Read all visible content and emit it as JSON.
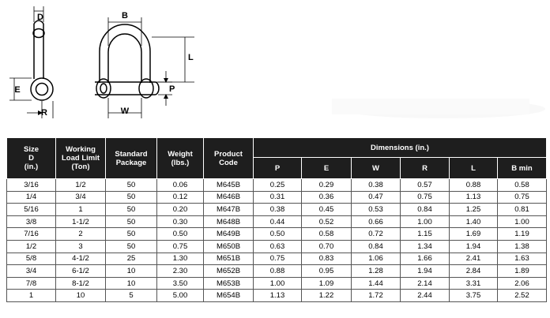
{
  "diagram": {
    "labels": {
      "d": "D",
      "e": "E",
      "r": "R",
      "b": "B",
      "l": "L",
      "p": "P",
      "w": "W"
    }
  },
  "table": {
    "headers": {
      "size": [
        "Size",
        "D",
        "(in.)"
      ],
      "wll": [
        "Working",
        "Load Limit",
        "(Ton)"
      ],
      "package": [
        "Standard",
        "Package"
      ],
      "weight": [
        "Weight",
        "(lbs.)"
      ],
      "code": [
        "Product",
        "Code"
      ],
      "dimensions": "Dimensions (in.)",
      "dim_columns": [
        "P",
        "E",
        "W",
        "R",
        "L",
        "B min"
      ]
    },
    "rows": [
      [
        "3/16",
        "1/2",
        "50",
        "0.06",
        "M645B",
        "0.25",
        "0.29",
        "0.38",
        "0.57",
        "0.88",
        "0.58"
      ],
      [
        "1/4",
        "3/4",
        "50",
        "0.12",
        "M646B",
        "0.31",
        "0.36",
        "0.47",
        "0.75",
        "1.13",
        "0.75"
      ],
      [
        "5/16",
        "1",
        "50",
        "0.20",
        "M647B",
        "0.38",
        "0.45",
        "0.53",
        "0.84",
        "1.25",
        "0.81"
      ],
      [
        "3/8",
        "1-1/2",
        "50",
        "0.30",
        "M648B",
        "0.44",
        "0.52",
        "0.66",
        "1.00",
        "1.40",
        "1.00"
      ],
      [
        "7/16",
        "2",
        "50",
        "0.50",
        "M649B",
        "0.50",
        "0.58",
        "0.72",
        "1.15",
        "1.69",
        "1.19"
      ],
      [
        "1/2",
        "3",
        "50",
        "0.75",
        "M650B",
        "0.63",
        "0.70",
        "0.84",
        "1.34",
        "1.94",
        "1.38"
      ],
      [
        "5/8",
        "4-1/2",
        "25",
        "1.30",
        "M651B",
        "0.75",
        "0.83",
        "1.06",
        "1.66",
        "2.41",
        "1.63"
      ],
      [
        "3/4",
        "6-1/2",
        "10",
        "2.30",
        "M652B",
        "0.88",
        "0.95",
        "1.28",
        "1.94",
        "2.84",
        "1.89"
      ],
      [
        "7/8",
        "8-1/2",
        "10",
        "3.50",
        "M653B",
        "1.00",
        "1.09",
        "1.44",
        "2.14",
        "3.31",
        "2.06"
      ],
      [
        "1",
        "10",
        "5",
        "5.00",
        "M654B",
        "1.13",
        "1.22",
        "1.72",
        "2.44",
        "3.75",
        "2.52"
      ]
    ]
  }
}
